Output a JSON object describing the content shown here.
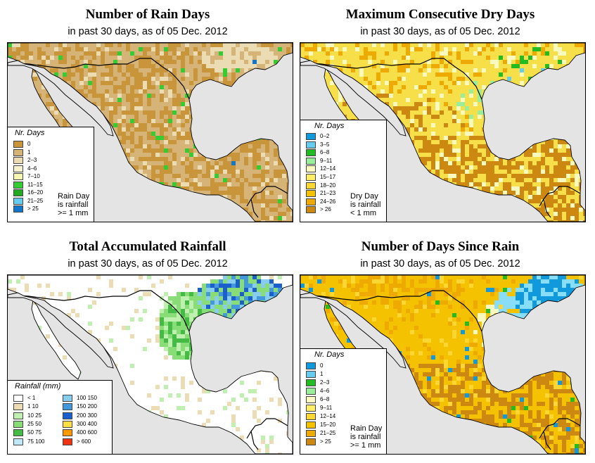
{
  "panels": [
    {
      "title": "Number of Rain Days",
      "subtitle": "in past 30 days, as of  05 Dec. 2012",
      "legend_title": "Nr. Days",
      "legend": [
        {
          "label": "0",
          "color": "#c9953b"
        },
        {
          "label": "1",
          "color": "#d6b478"
        },
        {
          "label": "2–3",
          "color": "#ecdcb4"
        },
        {
          "label": "4–6",
          "color": "#f7f2cf"
        },
        {
          "label": "7–10",
          "color": "#f7f7b4"
        },
        {
          "label": "11–15",
          "color": "#33cc33"
        },
        {
          "label": "16–20",
          "color": "#22aa22"
        },
        {
          "label": "21–25",
          "color": "#66ccee"
        },
        {
          "label": "> 25",
          "color": "#1177cc"
        }
      ],
      "note": [
        "Rain Day",
        "is rainfall",
        ">= 1 mm"
      ]
    },
    {
      "title": "Maximum Consecutive Dry Days",
      "subtitle": "in past 30 days, as of  05 Dec. 2012",
      "legend_title": "Nr. Days",
      "legend": [
        {
          "label": "0–2",
          "color": "#1199dd"
        },
        {
          "label": "3–5",
          "color": "#66ccee"
        },
        {
          "label": "6–8",
          "color": "#22bb22"
        },
        {
          "label": "9–11",
          "color": "#99ee99"
        },
        {
          "label": "12–14",
          "color": "#fafac0"
        },
        {
          "label": "15–17",
          "color": "#ffee66"
        },
        {
          "label": "18–20",
          "color": "#fcd633"
        },
        {
          "label": "21–23",
          "color": "#f5c200"
        },
        {
          "label": "24–26",
          "color": "#eeaa00"
        },
        {
          "label": "> 26",
          "color": "#cc8811"
        }
      ],
      "note": [
        "Dry Day",
        "is rainfall",
        "< 1 mm"
      ]
    },
    {
      "title": "Total Accumulated Rainfall",
      "subtitle": "in past 30 days, as of  05 Dec. 2012",
      "legend_title": "Rainfall (mm)",
      "legend": [
        {
          "label": "< 1",
          "color": "#ffffff"
        },
        {
          "label": "1    10",
          "color": "#ecdcb4"
        },
        {
          "label": "10    25",
          "color": "#bff0b0"
        },
        {
          "label": "25    50",
          "color": "#88dd77"
        },
        {
          "label": "50    75",
          "color": "#44bb44"
        },
        {
          "label": "75  100",
          "color": "#bfe8f8"
        },
        {
          "label": "100  150",
          "color": "#88ccee"
        },
        {
          "label": "150  200",
          "color": "#4499dd"
        },
        {
          "label": "200  300",
          "color": "#1a5fcc"
        },
        {
          "label": "300  400",
          "color": "#ffdd44"
        },
        {
          "label": "400  600",
          "color": "#ff9900"
        },
        {
          "label": "> 600",
          "color": "#ee3311"
        }
      ],
      "note": []
    },
    {
      "title": "Number of Days Since Rain",
      "subtitle": "in past 30 days, as of  05 Dec. 2012",
      "legend_title": "Nr. Days",
      "legend": [
        {
          "label": "0",
          "color": "#1199dd"
        },
        {
          "label": "1",
          "color": "#66ccee"
        },
        {
          "label": "2–3",
          "color": "#22bb22"
        },
        {
          "label": "4–6",
          "color": "#99ee99"
        },
        {
          "label": "6–8",
          "color": "#fafac0"
        },
        {
          "label": "9–11",
          "color": "#ffee66"
        },
        {
          "label": "12–14",
          "color": "#fcd633"
        },
        {
          "label": "15–20",
          "color": "#f5c200"
        },
        {
          "label": "21–25",
          "color": "#eeaa00"
        },
        {
          "label": "> 25",
          "color": "#cc8811"
        }
      ],
      "note": [
        "Rain Day",
        "is rainfall",
        ">= 1 mm"
      ]
    }
  ],
  "colors": {
    "ocean": "#e4e4e4",
    "border": "#000000",
    "p1": {
      "base": "#d6b478",
      "alt": "#c9953b",
      "wet": "#ecdcb4",
      "green": "#33cc33",
      "blue": "#1177cc"
    },
    "p2": {
      "base": "#f7df4a",
      "dark": "#cc8811",
      "mid": "#eeaa00",
      "light": "#fafac0",
      "green": "#99ee99",
      "cyan": "#66ccee",
      "blue": "#1199dd",
      "dg": "#22bb22"
    },
    "p3": {
      "base": "#ffffff",
      "tan": "#ecdcb4",
      "lg": "#bff0b0",
      "mg": "#88dd77",
      "dg": "#44bb44",
      "lb": "#88ccee",
      "mb": "#4499dd",
      "db": "#1a5fcc"
    },
    "p4": {
      "base": "#f5c200",
      "dark": "#cc8811",
      "mid": "#eeaa00",
      "yel": "#fcd633",
      "light": "#fafac0",
      "cyan": "#88ddf8",
      "blue": "#1199dd",
      "green": "#22bb22"
    }
  }
}
